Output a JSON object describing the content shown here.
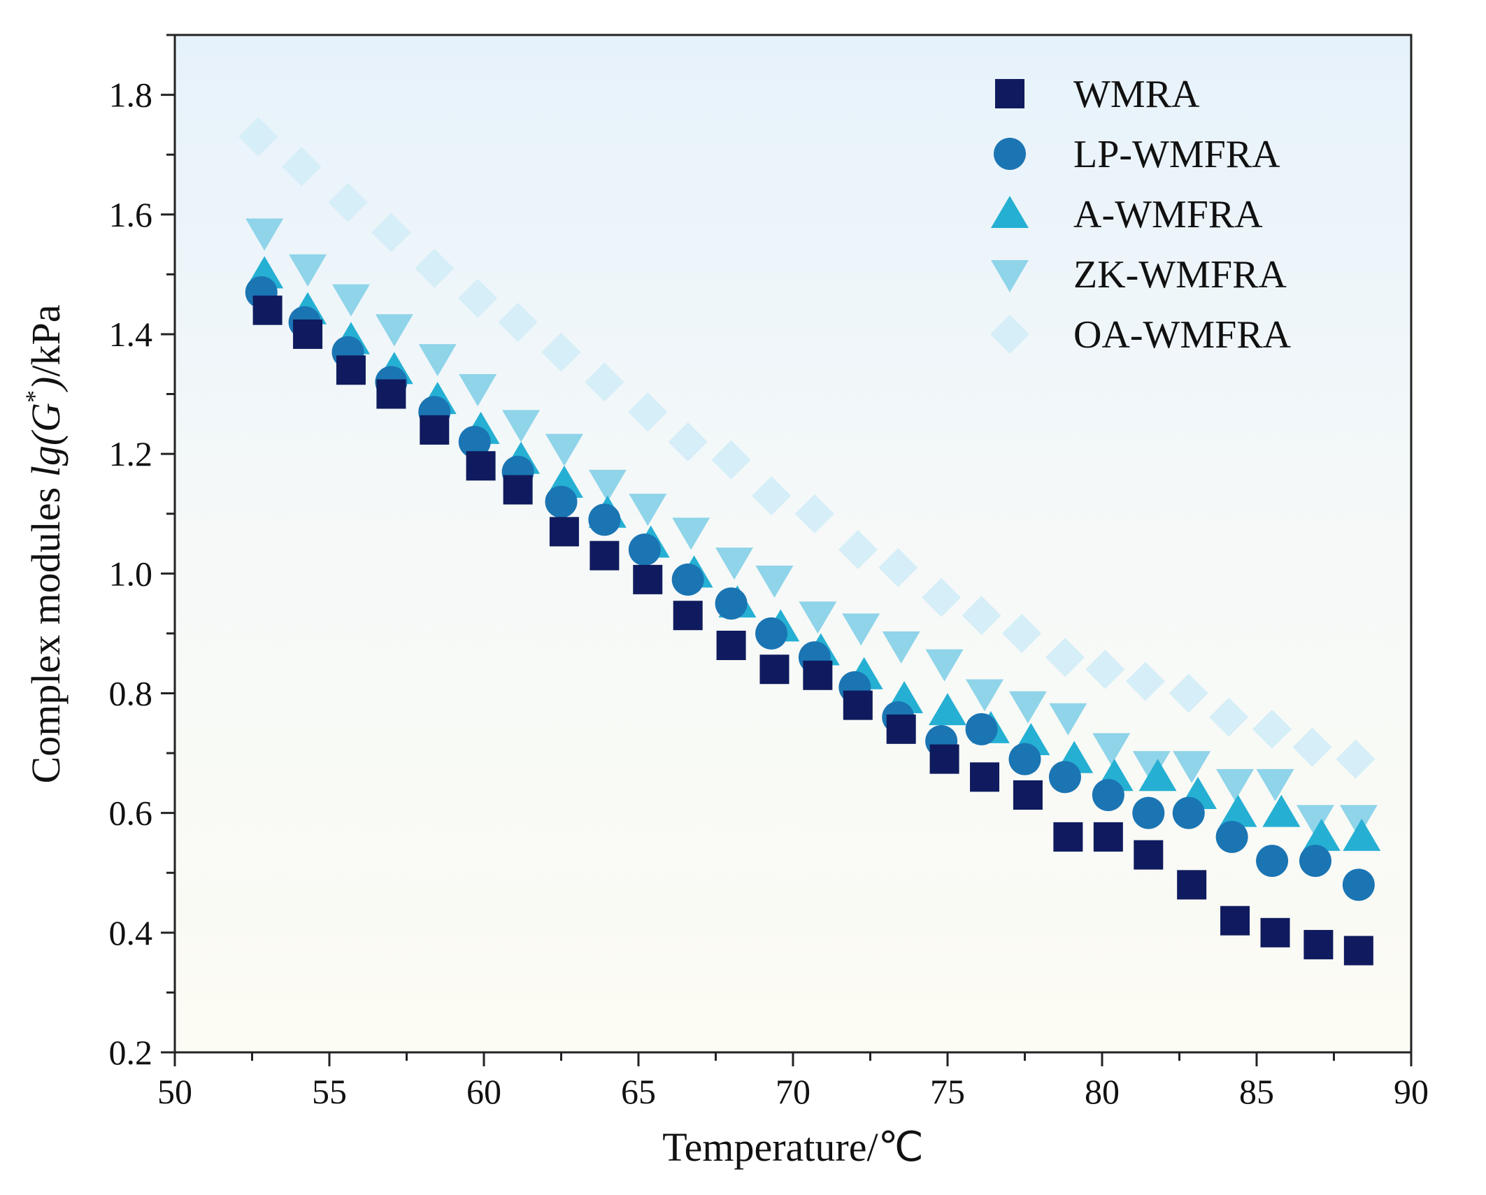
{
  "chart_data": {
    "type": "scatter",
    "title": "",
    "xlabel": "Temperature/℃",
    "ylabel": {
      "prefix": "Complex modules ",
      "italic": "lg(G",
      "sup": "*",
      "italic_close": ")",
      "suffix": "/kPa"
    },
    "xlim": [
      50,
      90
    ],
    "ylim": [
      0.2,
      1.9
    ],
    "x_ticks": [
      "50",
      "55",
      "60",
      "65",
      "70",
      "75",
      "80",
      "85",
      "90"
    ],
    "y_ticks": [
      "0.2",
      "0.4",
      "0.6",
      "0.8",
      "1.0",
      "1.2",
      "1.4",
      "1.6",
      "1.8"
    ],
    "grid": false,
    "legend_position": "top-right",
    "series": [
      {
        "name": "WMRA",
        "marker": "square",
        "color": "#0f1b5e",
        "x": [
          53.0,
          54.3,
          55.7,
          57.0,
          58.4,
          59.9,
          61.1,
          62.6,
          63.9,
          65.3,
          66.6,
          68.0,
          69.4,
          70.8,
          72.1,
          73.5,
          74.9,
          76.2,
          77.6,
          78.9,
          80.2,
          81.5,
          82.9,
          84.3,
          85.6,
          87.0,
          88.3
        ],
        "y": [
          1.44,
          1.4,
          1.34,
          1.3,
          1.24,
          1.18,
          1.14,
          1.07,
          1.03,
          0.99,
          0.93,
          0.88,
          0.84,
          0.83,
          0.78,
          0.74,
          0.69,
          0.66,
          0.63,
          0.56,
          0.56,
          0.53,
          0.48,
          0.42,
          0.4,
          0.38,
          0.37
        ]
      },
      {
        "name": "LP-WMFRA",
        "marker": "circle",
        "color": "#1b75b3",
        "x": [
          52.8,
          54.2,
          55.6,
          57.0,
          58.4,
          59.7,
          61.1,
          62.5,
          63.9,
          65.2,
          66.6,
          68.0,
          69.3,
          70.7,
          72.0,
          73.4,
          74.8,
          76.1,
          77.5,
          78.8,
          80.2,
          81.5,
          82.8,
          84.2,
          85.5,
          86.9,
          88.3
        ],
        "y": [
          1.47,
          1.42,
          1.37,
          1.32,
          1.27,
          1.22,
          1.17,
          1.12,
          1.09,
          1.04,
          0.99,
          0.95,
          0.9,
          0.86,
          0.81,
          0.76,
          0.72,
          0.74,
          0.69,
          0.66,
          0.63,
          0.6,
          0.6,
          0.56,
          0.52,
          0.52,
          0.48
        ]
      },
      {
        "name": "A-WMFRA",
        "marker": "triangle-up",
        "color": "#25b0d3",
        "x": [
          52.9,
          54.3,
          55.7,
          57.1,
          58.5,
          59.9,
          61.2,
          62.6,
          64.0,
          65.4,
          66.8,
          68.2,
          69.6,
          70.9,
          72.3,
          73.6,
          75.0,
          76.4,
          77.7,
          79.1,
          80.4,
          81.8,
          83.1,
          84.4,
          85.8,
          87.1,
          88.4
        ],
        "y": [
          1.5,
          1.44,
          1.39,
          1.34,
          1.29,
          1.24,
          1.19,
          1.15,
          1.1,
          1.05,
          1.0,
          0.95,
          0.91,
          0.87,
          0.83,
          0.79,
          0.77,
          0.74,
          0.72,
          0.69,
          0.66,
          0.66,
          0.63,
          0.6,
          0.6,
          0.56,
          0.56
        ]
      },
      {
        "name": "ZK-WMFRA",
        "marker": "triangle-down",
        "color": "#8fd4e9",
        "x": [
          52.9,
          54.3,
          55.7,
          57.1,
          58.5,
          59.8,
          61.2,
          62.6,
          64.0,
          65.3,
          66.7,
          68.1,
          69.4,
          70.8,
          72.2,
          73.5,
          74.9,
          76.2,
          77.6,
          78.9,
          80.3,
          81.6,
          82.9,
          84.3,
          85.6,
          86.9,
          88.3
        ],
        "y": [
          1.57,
          1.51,
          1.46,
          1.41,
          1.36,
          1.31,
          1.25,
          1.21,
          1.15,
          1.11,
          1.07,
          1.02,
          0.99,
          0.93,
          0.91,
          0.88,
          0.85,
          0.8,
          0.78,
          0.76,
          0.71,
          0.68,
          0.68,
          0.65,
          0.65,
          0.59,
          0.59
        ]
      },
      {
        "name": "OA-WMFRA",
        "marker": "diamond",
        "color": "#d5eef7",
        "x": [
          52.7,
          54.1,
          55.6,
          57.0,
          58.4,
          59.8,
          61.1,
          62.5,
          63.9,
          65.3,
          66.6,
          68.0,
          69.3,
          70.7,
          72.1,
          73.4,
          74.8,
          76.1,
          77.4,
          78.8,
          80.1,
          81.4,
          82.8,
          84.1,
          85.5,
          86.8,
          88.2
        ],
        "y": [
          1.73,
          1.68,
          1.62,
          1.57,
          1.51,
          1.46,
          1.42,
          1.37,
          1.32,
          1.27,
          1.22,
          1.19,
          1.13,
          1.1,
          1.04,
          1.01,
          0.96,
          0.93,
          0.9,
          0.86,
          0.84,
          0.82,
          0.8,
          0.76,
          0.74,
          0.71,
          0.69
        ]
      }
    ]
  }
}
